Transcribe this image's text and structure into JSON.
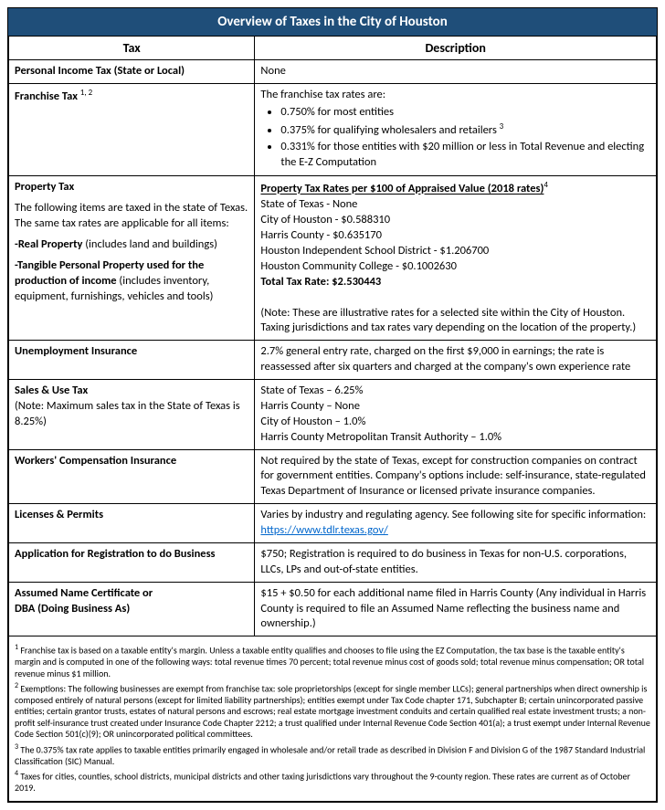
{
  "colors": {
    "header_bg": "#1f4e79",
    "header_text": "#ffffff",
    "link": "#0066cc",
    "border": "#000000"
  },
  "title": "Overview of Taxes in the City of Houston",
  "headers": {
    "tax": "Tax",
    "desc": "Description"
  },
  "rows": {
    "income": {
      "tax": "Personal Income Tax (State or Local)",
      "desc": "None"
    },
    "franchise": {
      "tax": "Franchise Tax ",
      "sup": "1, 2",
      "intro": "The franchise tax rates are:",
      "bullets": [
        "0.750% for most entities",
        "0.375% for qualifying wholesalers and retailers ",
        "0.331% for those entities with $20 million or less in Total Revenue and electing the E-Z Computation"
      ],
      "bullet2_sup": "3"
    },
    "property": {
      "tax_title": "Property Tax",
      "tax_para": "The following items are taxed in the state of Texas. The same tax rates are applicable for all items:",
      "sub1_b": "-Real Property",
      "sub1_rest": " (includes land and buildings)",
      "sub2_b": "-Tangible Personal Property used for the production of income",
      "sub2_rest": " (includes inventory, equipment, furnishings, vehicles and tools)",
      "desc_title": "Property Tax Rates per $100 of Appraised Value (2018 rates)",
      "desc_sup": "4",
      "lines": [
        "State of Texas - None",
        "City of Houston - $0.588310",
        "Harris County -    $0.635170",
        "Houston Independent School District - $1.206700",
        "Houston Community College - $0.1002630"
      ],
      "total_label": "Total Tax Rate:  $2.530443",
      "note": "(Note: These are illustrative rates for a selected site within the City of Houston. Taxing jurisdictions and tax rates vary depending on the location of the property.)"
    },
    "unemployment": {
      "tax": "Unemployment Insurance",
      "desc": "2.7% general entry rate, charged on the first $9,000 in earnings;  the rate is reassessed after six quarters and charged at the company's own experience rate"
    },
    "sales": {
      "tax": "Sales & Use Tax",
      "tax_note": "(Note: Maximum sales tax in the State of Texas is 8.25%)",
      "lines": [
        "State of Texas – 6.25%",
        "Harris County – None",
        "City of Houston – 1.0%",
        "Harris County Metropolitan Transit Authority – 1.0%"
      ]
    },
    "workers": {
      "tax": "Workers' Compensation Insurance",
      "desc": "Not required by the state of Texas, except for construction companies on contract for government entities. Company's options include: self-insurance, state-regulated Texas Department of Insurance or licensed private insurance companies."
    },
    "licenses": {
      "tax": "Licenses & Permits",
      "desc_pre": "Varies by industry and regulating agency. See following site for specific information: ",
      "link": "https://www.tdlr.texas.gov/"
    },
    "registration": {
      "tax": "Application for Registration to do Business",
      "desc": "$750; Registration is required to do business in Texas for non-U.S. corporations, LLCs, LPs and out-of-state entities."
    },
    "dba": {
      "tax_a": "Assumed Name Certificate or",
      "tax_b": "DBA (Doing Business As)",
      "desc": "$15 + $0.50 for each additional name filed in Harris County (Any individual in Harris County is required to file an Assumed Name reflecting the business name and ownership.)"
    }
  },
  "footnotes": {
    "f1": " Franchise tax is based on a taxable entity's margin. Unless a taxable entity qualifies and chooses to file using the EZ Computation, the tax base is the taxable entity's margin and is computed in one of the following ways: total revenue times 70 percent; total revenue minus cost of goods sold; total revenue minus compensation; OR total revenue minus $1 million.",
    "f2": " Exemptions: The following businesses are exempt from franchise tax: sole proprietorships (except for single member LLCs); general partnerships when direct ownership is composed entirely of natural persons (except for limited liability partnerships); entities exempt under Tax Code chapter 171, Subchapter B; certain unincorporated passive entities; certain grantor trusts, estates of natural persons and escrows; real estate mortgage investment conduits and certain qualified real estate investment trusts; a non-profit self-insurance trust created under Insurance Code Chapter 2212; a trust qualified under Internal Revenue Code Section 401(a); a trust exempt under Internal Revenue Code Section 501(c)(9); OR unincorporated political committees.",
    "f3": " The 0.375% tax rate applies to taxable entities primarily engaged in wholesale and/or retail trade as described in Division F and Division G of the 1987 Standard Industrial Classification (SIC) Manual.",
    "f4": " Taxes for cities, counties, school districts, municipal districts and other taxing jurisdictions vary throughout the 9-county region. These rates are current as of October 2019."
  }
}
